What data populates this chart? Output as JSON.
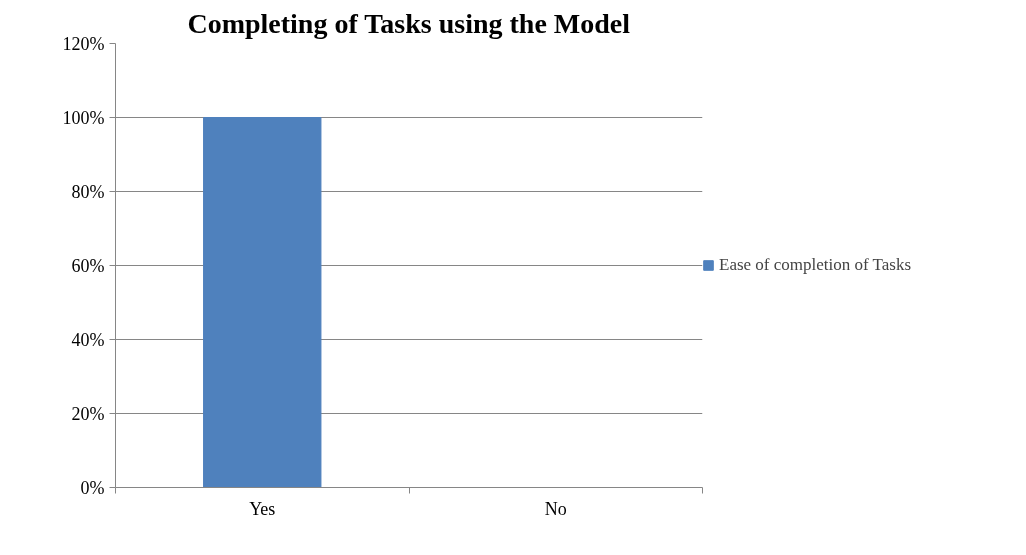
{
  "chart_data": {
    "type": "bar",
    "title": "Completing of Tasks using the Model",
    "categories": [
      "Yes",
      "No"
    ],
    "series": [
      {
        "name": "Ease of completion of Tasks",
        "color": "#4f81bd",
        "values": [
          1.0,
          0
        ]
      }
    ],
    "ylim": [
      0,
      1.2
    ],
    "yticks": [
      {
        "value": 0,
        "label": "0%"
      },
      {
        "value": 0.2,
        "label": "20%"
      },
      {
        "value": 0.4,
        "label": "40%"
      },
      {
        "value": 0.6,
        "label": "60%"
      },
      {
        "value": 0.8,
        "label": "80%"
      },
      {
        "value": 1.0,
        "label": "100%"
      },
      {
        "value": 1.2,
        "label": "120%"
      }
    ],
    "grid": "y",
    "legend": "right"
  }
}
